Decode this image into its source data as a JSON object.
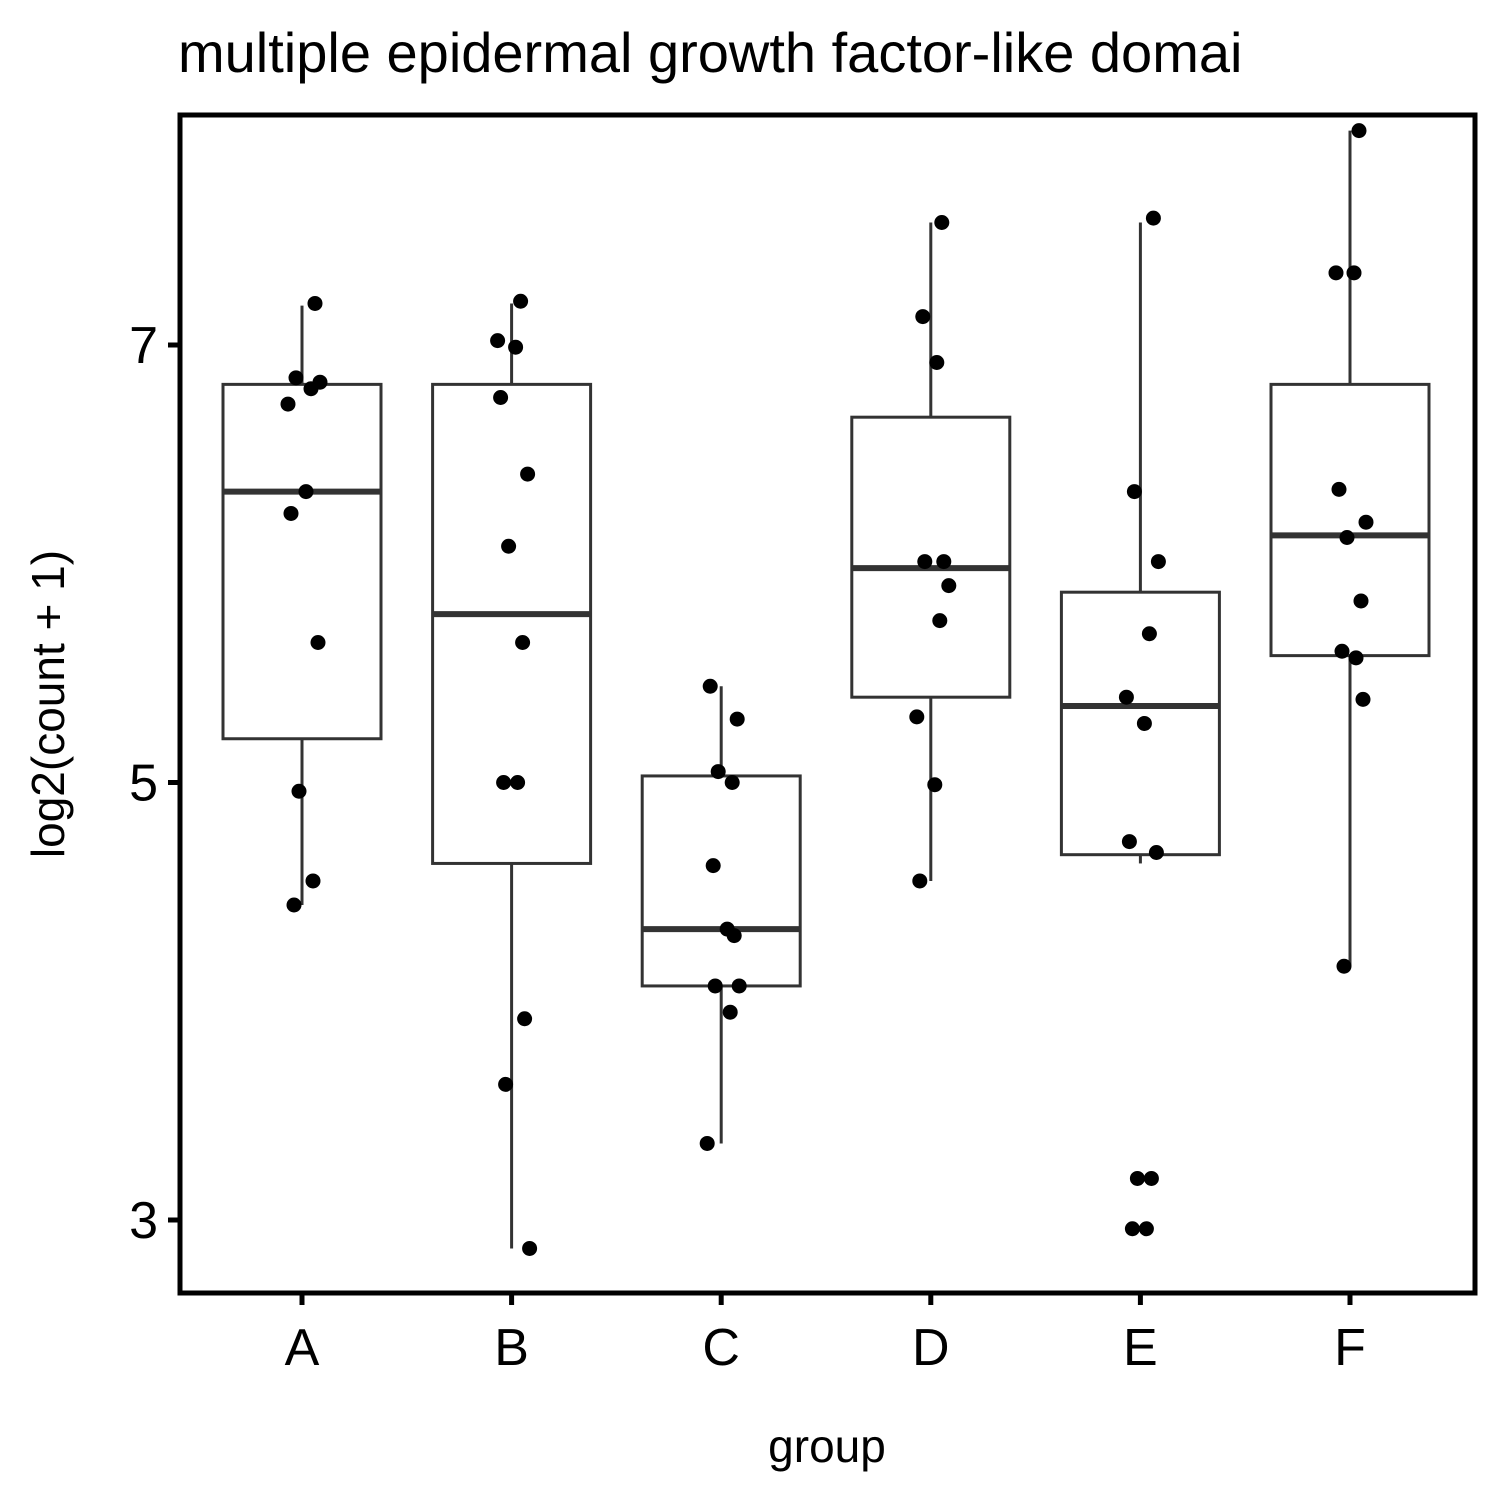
{
  "chart_data": {
    "type": "box",
    "title": "multiple epidermal growth factor-like domai",
    "xlabel": "group",
    "ylabel": "log2(count + 1)",
    "categories": [
      "A",
      "B",
      "C",
      "D",
      "E",
      "F"
    ],
    "y_ticks": [
      3,
      5,
      7
    ],
    "ylim": [
      2.6,
      8.0
    ],
    "grid": false,
    "legend": "none",
    "boxes": [
      {
        "category": "A",
        "q1": 5.2,
        "median": 6.33,
        "q3": 6.82,
        "whisker_low": 4.44,
        "whisker_high": 7.18
      },
      {
        "category": "B",
        "q1": 4.63,
        "median": 5.77,
        "q3": 6.82,
        "whisker_low": 2.87,
        "whisker_high": 7.19
      },
      {
        "category": "C",
        "q1": 4.07,
        "median": 4.33,
        "q3": 5.03,
        "whisker_low": 3.35,
        "whisker_high": 5.44
      },
      {
        "category": "D",
        "q1": 5.39,
        "median": 5.98,
        "q3": 6.67,
        "whisker_low": 4.55,
        "whisker_high": 7.56
      },
      {
        "category": "E",
        "q1": 4.67,
        "median": 5.35,
        "q3": 5.87,
        "whisker_low": 4.63,
        "whisker_high": 7.56
      },
      {
        "category": "F",
        "q1": 5.58,
        "median": 6.13,
        "q3": 6.82,
        "whisker_low": 4.16,
        "whisker_high": 7.98
      }
    ],
    "points": [
      {
        "category": "A",
        "y": [
          7.19,
          6.85,
          6.83,
          6.8,
          6.73,
          6.33,
          6.23,
          5.64,
          4.96,
          4.55,
          4.44
        ]
      },
      {
        "category": "B",
        "y": [
          7.2,
          7.02,
          6.99,
          6.76,
          6.41,
          6.08,
          5.64,
          5.0,
          5.0,
          3.92,
          3.62,
          2.87
        ]
      },
      {
        "category": "C",
        "y": [
          5.44,
          5.29,
          5.05,
          5.0,
          4.62,
          4.33,
          4.3,
          4.07,
          4.07,
          3.95,
          3.35
        ]
      },
      {
        "category": "D",
        "y": [
          7.56,
          7.13,
          6.92,
          6.01,
          6.01,
          5.9,
          5.74,
          5.3,
          4.99,
          4.55
        ]
      },
      {
        "category": "E",
        "y": [
          7.58,
          6.33,
          6.01,
          5.68,
          5.39,
          5.27,
          4.73,
          4.68,
          3.19,
          3.19,
          2.96,
          2.96
        ]
      },
      {
        "category": "F",
        "y": [
          7.98,
          7.33,
          7.33,
          6.34,
          6.19,
          6.12,
          5.83,
          5.6,
          5.57,
          5.38,
          4.16
        ]
      }
    ]
  }
}
